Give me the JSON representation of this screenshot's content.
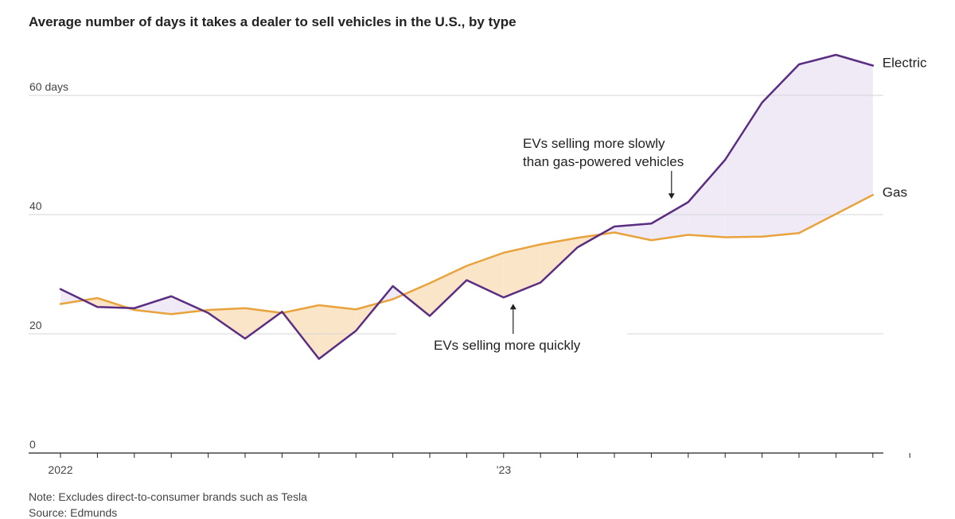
{
  "chart_data": {
    "type": "line",
    "title": "Average number of days it takes a dealer to sell vehicles in the U.S., by type",
    "x": [
      "2022-01",
      "2022-02",
      "2022-03",
      "2022-04",
      "2022-05",
      "2022-06",
      "2022-07",
      "2022-08",
      "2022-09",
      "2022-10",
      "2022-11",
      "2022-12",
      "2023-01",
      "2023-02",
      "2023-03",
      "2023-04",
      "2023-05",
      "2023-06",
      "2023-07",
      "2023-08",
      "2023-09",
      "2023-10",
      "2023-11",
      "2023-12"
    ],
    "x_tick_labels": [
      {
        "x": "2022-01",
        "label": "2022"
      },
      {
        "x": "2023-01",
        "label": "’23"
      }
    ],
    "series": [
      {
        "name": "Electric",
        "color": "#5b2d82",
        "values": [
          27.5,
          24.5,
          24.3,
          26.3,
          23.5,
          19.2,
          23.7,
          15.8,
          20.5,
          28.0,
          23.0,
          29.0,
          26.1,
          28.6,
          34.5,
          38.0,
          38.5,
          42.1,
          49.2,
          58.8,
          65.2,
          66.8,
          65.0,
          null
        ],
        "area_color": "#efeaf5"
      },
      {
        "name": "Gas",
        "color": "#e8a33d",
        "values": [
          25.0,
          26.0,
          24.0,
          23.3,
          24.0,
          24.3,
          23.5,
          24.8,
          24.1,
          25.8,
          28.5,
          31.4,
          33.6,
          35.0,
          36.1,
          37.0,
          35.7,
          36.6,
          36.2,
          36.3,
          36.9,
          40.1,
          43.3,
          null
        ]
      }
    ],
    "y_ticks": [
      {
        "value": 0,
        "label": "0"
      },
      {
        "value": 20,
        "label": "20"
      },
      {
        "value": 40,
        "label": "40"
      },
      {
        "value": 60,
        "label": "60 days"
      }
    ],
    "ylim": [
      0,
      70
    ],
    "ev_slower_fill": "#efeaf5",
    "ev_faster_fill": "#fbe5c8",
    "annotations": [
      {
        "id": "slow",
        "lines": [
          "EVs selling more slowly",
          "than gas-powered vehicles"
        ],
        "x": "2023-06",
        "y": 42.1
      },
      {
        "id": "quick",
        "lines": [
          "EVs selling more quickly"
        ],
        "x": "2023-01",
        "y": 26.1
      }
    ],
    "note": "Note: Excludes direct-to-consumer brands such as Tesla",
    "source": "Source: Edmunds"
  }
}
